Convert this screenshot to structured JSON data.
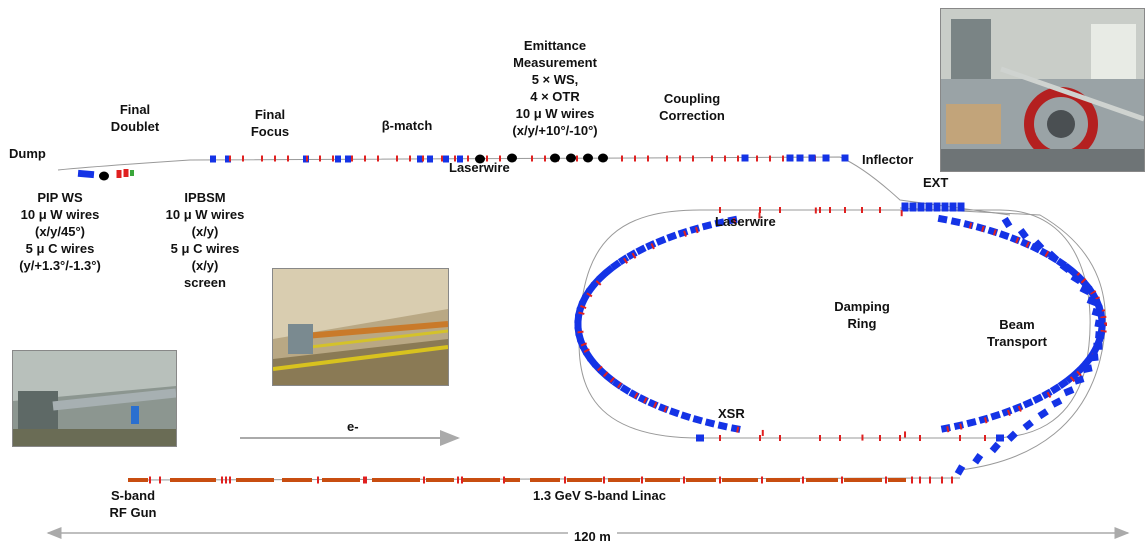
{
  "labels": {
    "dump": "Dump",
    "final_doublet": "Final\nDoublet",
    "final_focus": "Final\nFocus",
    "beta_match": "β-match",
    "emittance": "Emittance\nMeasurement\n5 × WS,\n4 × OTR\n10 μ W wires\n(x/y/+10°/-10°)",
    "coupling": "Coupling\nCorrection",
    "inflector": "Inflector",
    "ext": "EXT",
    "laserwire_top": "Laserwire",
    "laserwire_ring": "Laserwire",
    "pip_ws": "PIP WS\n10 μ W wires\n(x/y/45°)\n5 μ C wires\n(y/+1.3°/-1.3°)",
    "ipbsm": "IPBSM\n10 μ W wires\n(x/y)\n5 μ C wires\n(x/y)\nscreen",
    "damping_ring": "Damping\nRing",
    "beam_transport": "Beam\nTransport",
    "xsr": "XSR",
    "e_minus": "e-",
    "sband_gun": "S-band\nRF Gun",
    "linac": "1.3 GeV  S-band Linac",
    "scale": "120 m"
  },
  "colors": {
    "quad": "#1433e6",
    "sext": "#e02020",
    "linac": "#c84d10",
    "corrector": "#3aa63a",
    "beam_line": "#999999",
    "arrow": "#aaaaaa"
  },
  "photos": {
    "top_right": "photo-top-right",
    "middle": "photo-beamline-tunnel",
    "left": "photo-linac-tunnel"
  }
}
